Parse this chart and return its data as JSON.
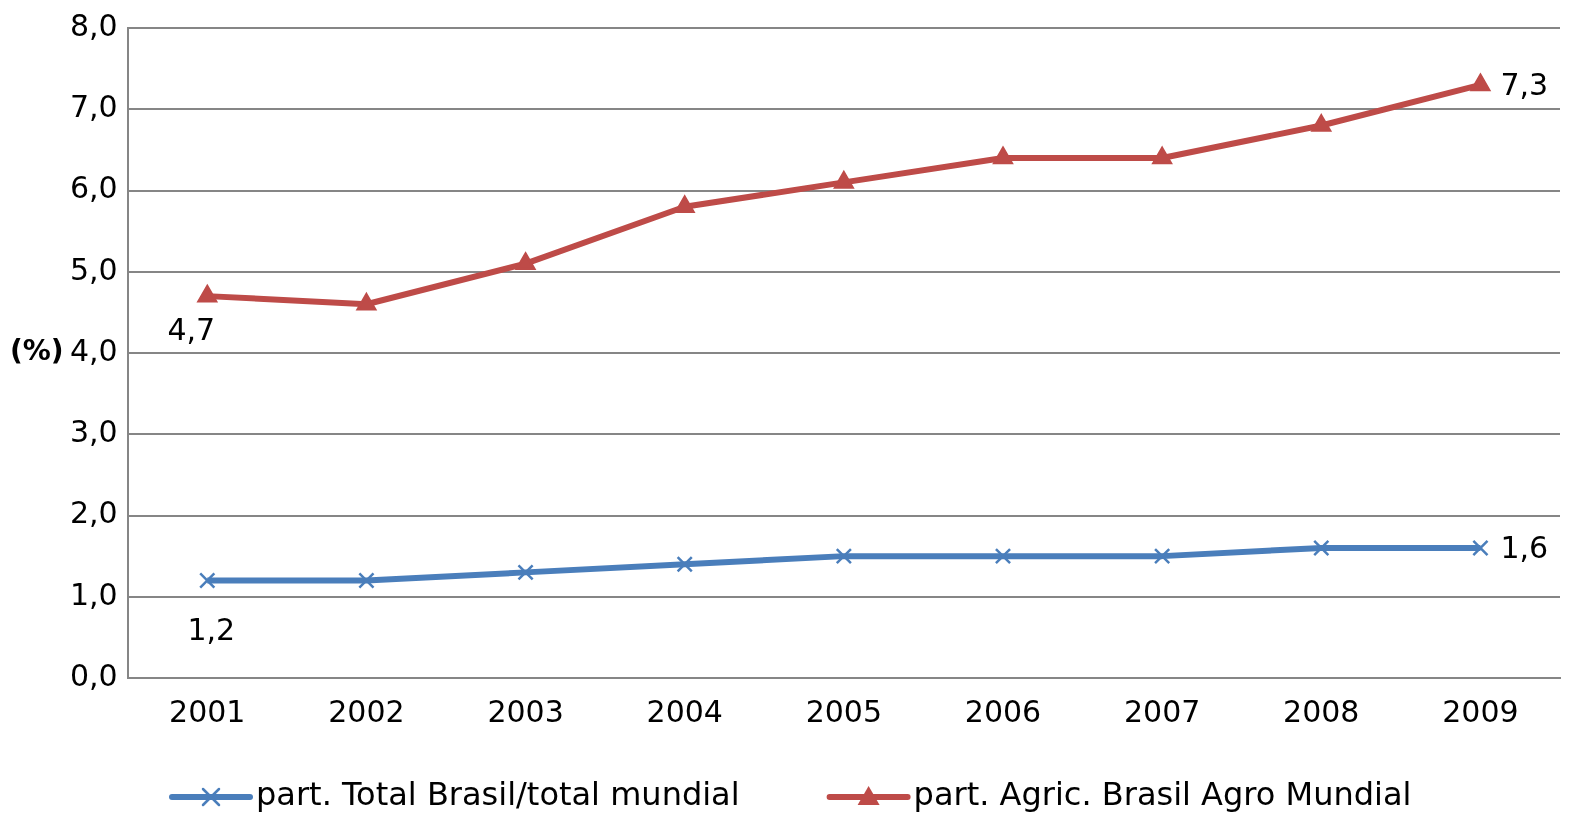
{
  "chart_data": {
    "type": "line",
    "ylabel": "(%)",
    "categories": [
      "2001",
      "2002",
      "2003",
      "2004",
      "2005",
      "2006",
      "2007",
      "2008",
      "2009"
    ],
    "series": [
      {
        "name": "part. Total Brasil/total mundial",
        "color": "#4a7ebb",
        "marker": "cross",
        "values": [
          1.2,
          1.2,
          1.3,
          1.4,
          1.5,
          1.5,
          1.5,
          1.6,
          1.6
        ],
        "value_labels": [
          "1,2",
          null,
          null,
          null,
          null,
          null,
          null,
          null,
          "1,6"
        ]
      },
      {
        "name": "part. Agric. Brasil Agro Mundial",
        "color": "#be4b48",
        "marker": "triangle",
        "values": [
          4.7,
          4.6,
          5.1,
          5.8,
          6.1,
          6.4,
          6.4,
          6.8,
          7.3
        ],
        "value_labels": [
          "4,7",
          null,
          null,
          null,
          null,
          null,
          null,
          null,
          "7,3"
        ]
      }
    ],
    "ylim": [
      0,
      8
    ],
    "yticks": [
      {
        "value": 0,
        "label": "0,0"
      },
      {
        "value": 1,
        "label": "1,0"
      },
      {
        "value": 2,
        "label": "2,0"
      },
      {
        "value": 3,
        "label": "3,0"
      },
      {
        "value": 4,
        "label": "4,0"
      },
      {
        "value": 5,
        "label": "5,0"
      },
      {
        "value": 6,
        "label": "6,0"
      },
      {
        "value": 7,
        "label": "7,0"
      },
      {
        "value": 8,
        "label": "8,0"
      }
    ],
    "grid": "y",
    "legend": "bottom",
    "line_style": "solid"
  }
}
